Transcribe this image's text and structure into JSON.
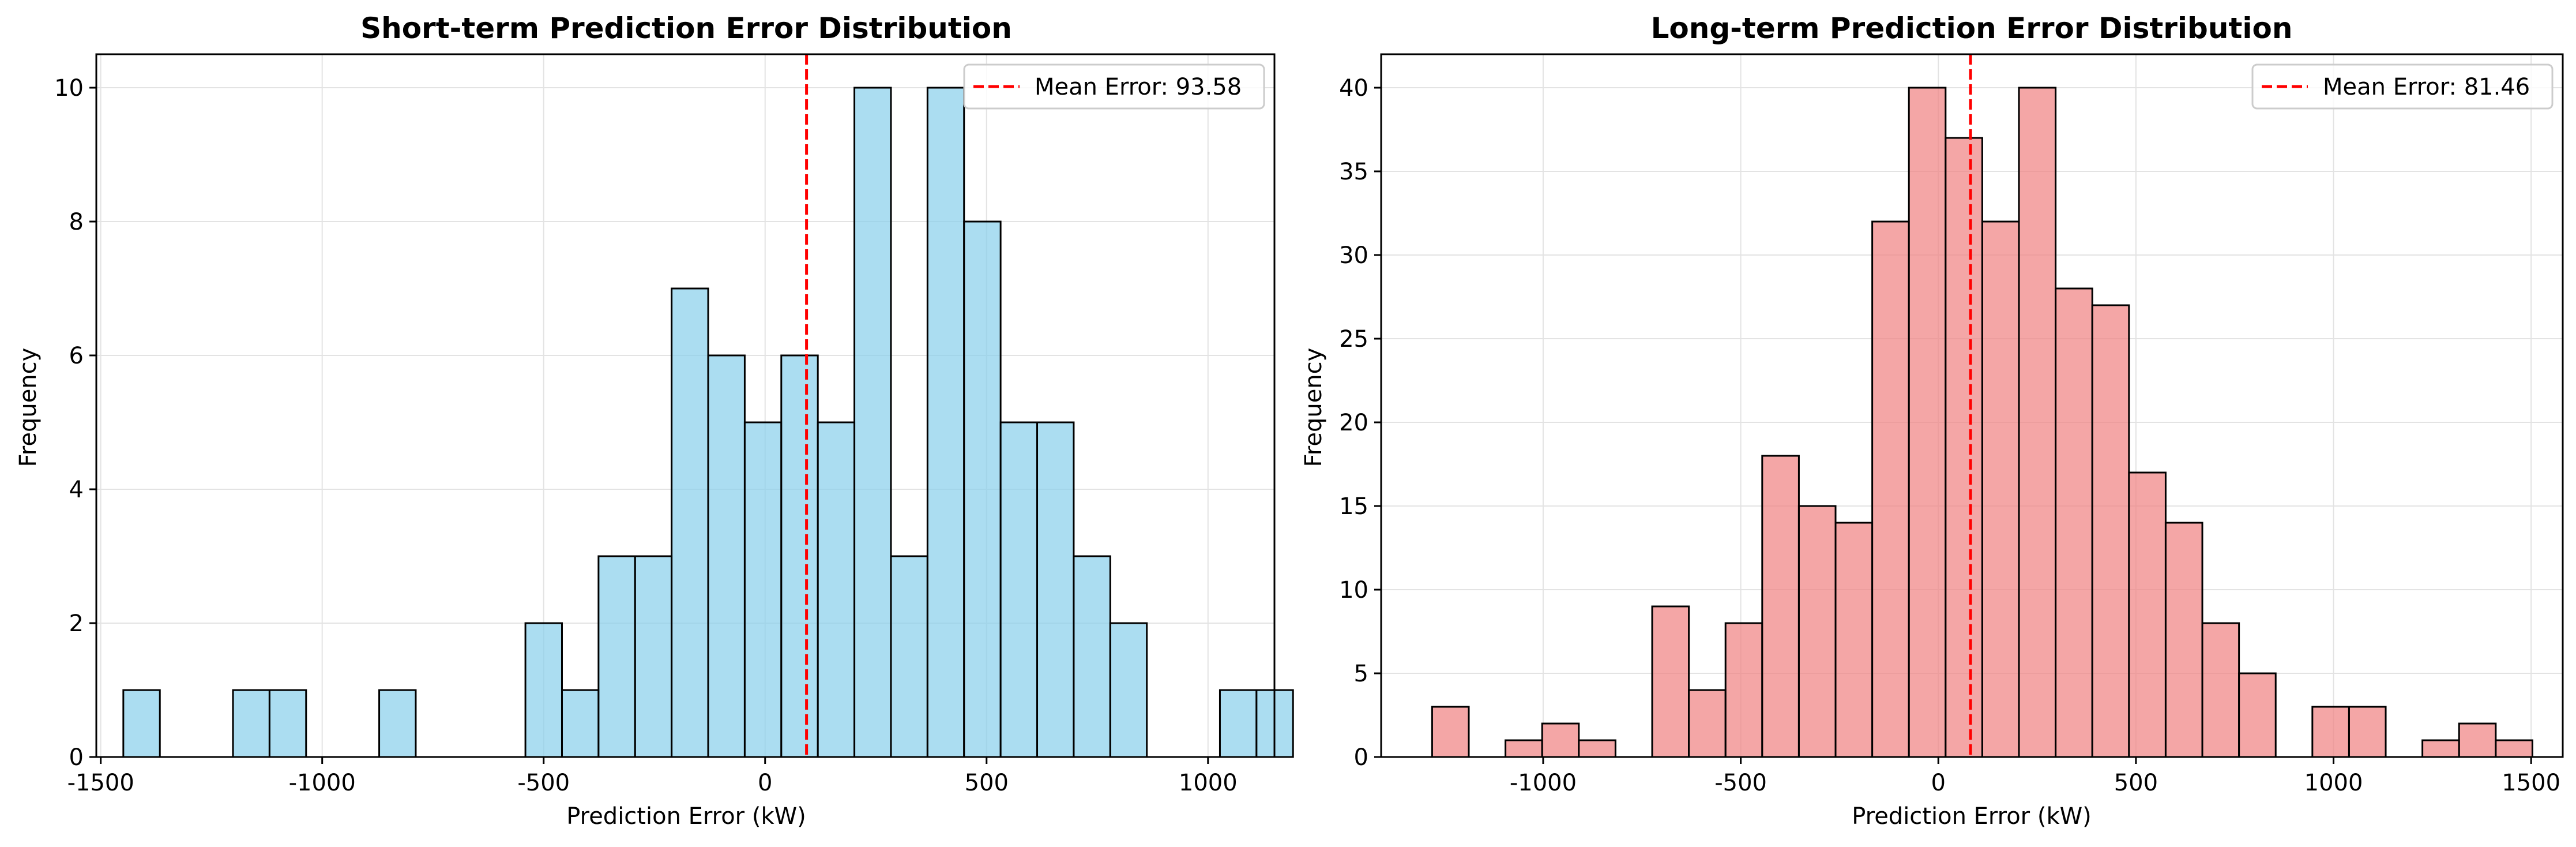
{
  "chart_data": [
    {
      "type": "bar",
      "title": "Short-term Prediction Error Distribution",
      "xlabel": "Prediction Error (kW)",
      "ylabel": "Frequency",
      "xlim": [
        -1510,
        1150
      ],
      "ylim": [
        0,
        10.5
      ],
      "xticks": [
        -1500,
        -1000,
        -500,
        0,
        500,
        1000
      ],
      "xtick_labels": [
        "-1500",
        "-1000",
        "-500",
        "0",
        "500",
        "1000"
      ],
      "yticks": [
        0,
        2,
        4,
        6,
        8,
        10
      ],
      "ytick_labels": [
        "0",
        "2",
        "4",
        "6",
        "8",
        "10"
      ],
      "grid": true,
      "bar_color": "#87CEEB",
      "edge_color": "#000000",
      "bins_start": -1449,
      "bin_width": 82.53,
      "counts": [
        1,
        0,
        0,
        1,
        1,
        0,
        0,
        1,
        0,
        0,
        0,
        2,
        1,
        3,
        3,
        7,
        6,
        5,
        6,
        5,
        10,
        3,
        10,
        8,
        5,
        5,
        3,
        2,
        0,
        0,
        1,
        1
      ],
      "mean_line": {
        "value": 93.58,
        "color": "#ff0000",
        "label": "Mean Error: 93.58"
      },
      "legend_position": "top-right"
    },
    {
      "type": "bar",
      "title": "Long-term Prediction Error Distribution",
      "xlabel": "Prediction Error (kW)",
      "ylabel": "Frequency",
      "xlim": [
        -1410,
        1580
      ],
      "ylim": [
        0,
        42
      ],
      "xticks": [
        -1000,
        -500,
        0,
        500,
        1000,
        1500
      ],
      "xtick_labels": [
        "-1000",
        "-500",
        "0",
        "500",
        "1000",
        "1500"
      ],
      "yticks": [
        0,
        5,
        10,
        15,
        20,
        25,
        30,
        35,
        40
      ],
      "ytick_labels": [
        "0",
        "5",
        "10",
        "15",
        "20",
        "25",
        "30",
        "35",
        "40"
      ],
      "grid": true,
      "bar_color": "#F08080",
      "edge_color": "#000000",
      "bins_start": -1281,
      "bin_width": 92.81,
      "counts": [
        3,
        0,
        1,
        2,
        1,
        0,
        9,
        4,
        8,
        18,
        15,
        14,
        32,
        40,
        37,
        32,
        40,
        28,
        27,
        17,
        14,
        8,
        5,
        0,
        3,
        3,
        0,
        1,
        2,
        1
      ],
      "mean_line": {
        "value": 81.46,
        "color": "#ff0000",
        "label": "Mean Error: 81.46"
      },
      "legend_position": "top-right"
    }
  ]
}
